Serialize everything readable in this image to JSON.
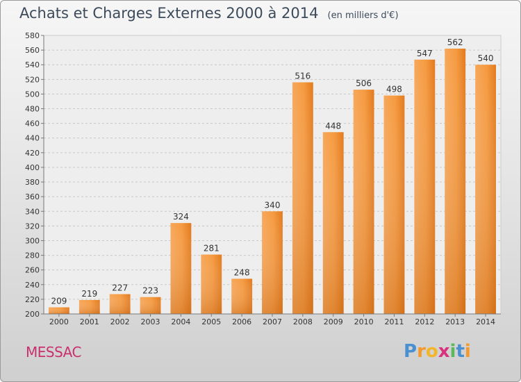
{
  "header": {
    "title": "Achats et Charges Externes 2000 à 2014",
    "unit": "(en milliers d'€)"
  },
  "footer": {
    "commune": "MESSAC",
    "logo_text": "Proxiti",
    "logo_letters": [
      {
        "char": "P",
        "color": "#4a8fd0"
      },
      {
        "char": "r",
        "color": "#f39a2a"
      },
      {
        "char": "o",
        "color": "#f3b62a"
      },
      {
        "char": "x",
        "color": "#d8327e"
      },
      {
        "char": "i",
        "color": "#5cb85c"
      },
      {
        "char": "t",
        "color": "#4a8fd0"
      },
      {
        "char": "i",
        "color": "#f39a2a"
      }
    ]
  },
  "chart_data": {
    "type": "bar",
    "title": "Achats et Charges Externes 2000 à 2014",
    "subtitle": "(en milliers d'€)",
    "xlabel": "",
    "ylabel": "",
    "categories": [
      "2000",
      "2001",
      "2002",
      "2003",
      "2004",
      "2005",
      "2006",
      "2007",
      "2008",
      "2009",
      "2010",
      "2011",
      "2012",
      "2013",
      "2014"
    ],
    "values": [
      209,
      219,
      227,
      223,
      324,
      281,
      248,
      340,
      516,
      448,
      506,
      498,
      547,
      562,
      540
    ],
    "ylim": [
      200,
      580
    ],
    "yticks": [
      200,
      220,
      240,
      260,
      280,
      300,
      320,
      340,
      360,
      380,
      400,
      420,
      440,
      460,
      480,
      500,
      520,
      540,
      560,
      580
    ],
    "grid": "horizontal dashed",
    "bar_color": "#f0882a"
  }
}
